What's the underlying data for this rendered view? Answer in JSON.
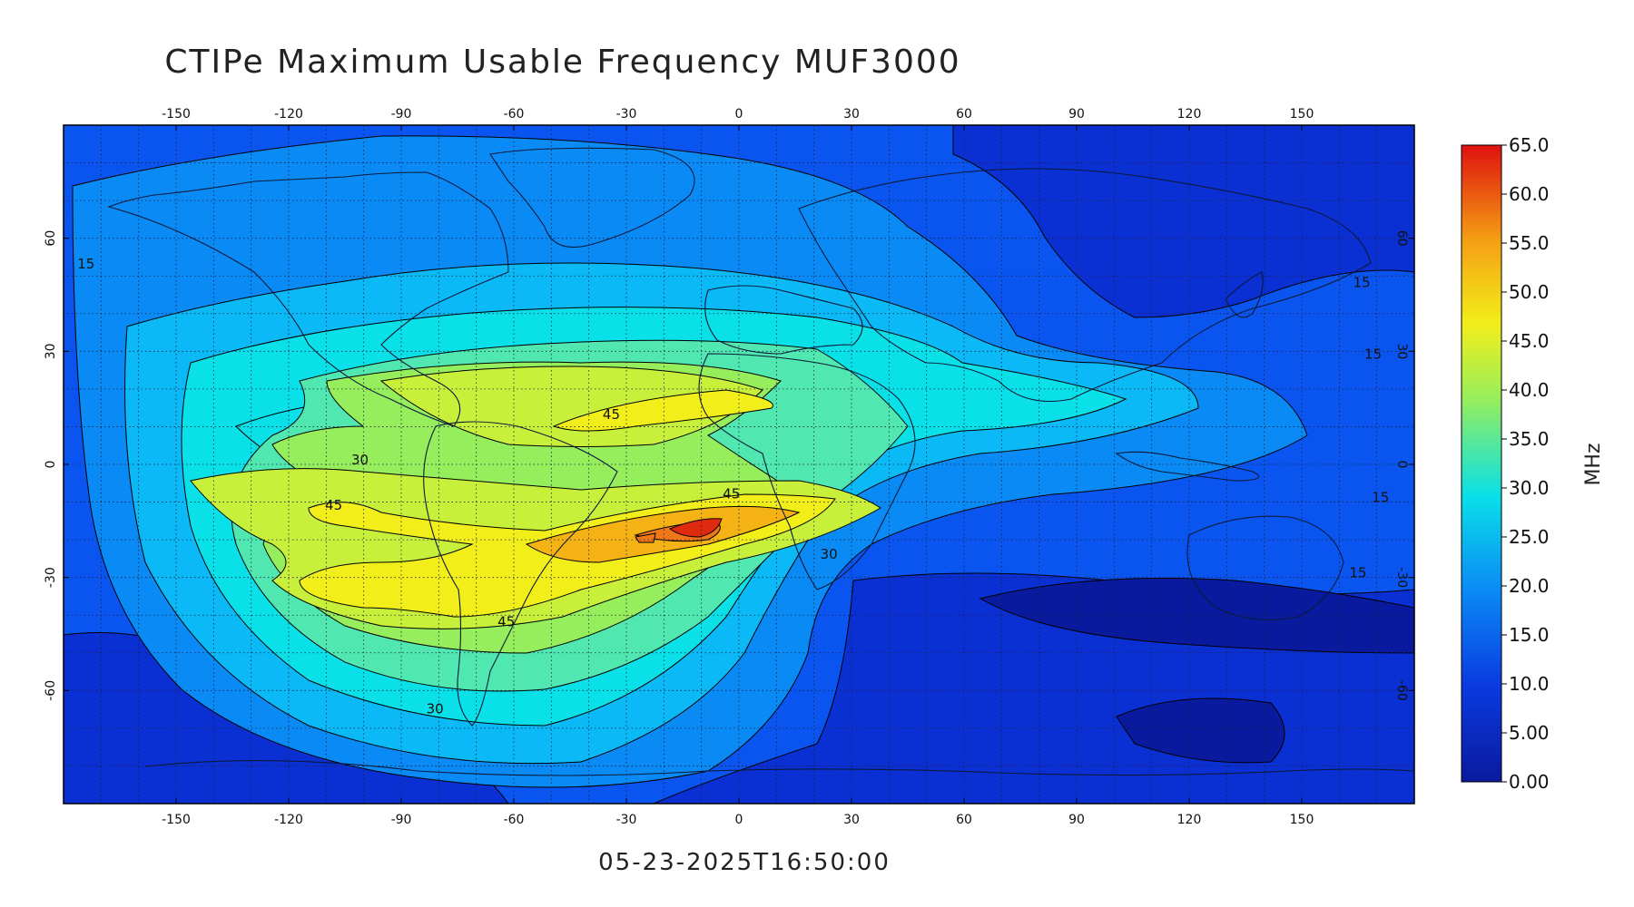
{
  "title": "CTIPe Maximum Usable Frequency MUF3000",
  "timestamp": "05-23-2025T16:50:00",
  "map": {
    "lon_range": [
      -180,
      180
    ],
    "lat_range": [
      -90,
      90
    ],
    "lon_ticks": [
      -150,
      -120,
      -90,
      -60,
      -30,
      0,
      30,
      60,
      90,
      120,
      150
    ],
    "lat_ticks": [
      -60,
      -30,
      0,
      30,
      60
    ],
    "grid": "dotted, every 10 degrees",
    "contour_labels": [
      {
        "text": "45",
        "lon": -34,
        "lat": 12
      },
      {
        "text": "45",
        "lon": -2,
        "lat": -9
      },
      {
        "text": "45",
        "lon": -108,
        "lat": -12
      },
      {
        "text": "45",
        "lon": -62,
        "lat": -43
      },
      {
        "text": "30",
        "lon": -101,
        "lat": 0
      },
      {
        "text": "30",
        "lon": 24,
        "lat": -25
      },
      {
        "text": "30",
        "lon": -81,
        "lat": -66
      },
      {
        "text": "15",
        "lon": -174,
        "lat": 52
      },
      {
        "text": "15",
        "lon": 166,
        "lat": 47
      },
      {
        "text": "15",
        "lon": 169,
        "lat": 28
      },
      {
        "text": "15",
        "lon": 171,
        "lat": -10
      },
      {
        "text": "15",
        "lon": 165,
        "lat": -30
      }
    ]
  },
  "colorbar": {
    "unit": "MHz",
    "min": 0,
    "max": 65,
    "labels": [
      "65.0",
      "60.0",
      "55.0",
      "50.0",
      "45.0",
      "40.0",
      "35.0",
      "30.0",
      "25.0",
      "20.0",
      "15.0",
      "10.0",
      "5.00",
      "0.00"
    ],
    "levels": [
      {
        "from": 0,
        "to": 5,
        "color": "#0a1a9e"
      },
      {
        "from": 5,
        "to": 10,
        "color": "#0a2fd2"
      },
      {
        "from": 10,
        "to": 15,
        "color": "#0a55f0"
      },
      {
        "from": 15,
        "to": 20,
        "color": "#0a8af5"
      },
      {
        "from": 20,
        "to": 25,
        "color": "#0ab9f5"
      },
      {
        "from": 25,
        "to": 30,
        "color": "#0ae0e8"
      },
      {
        "from": 30,
        "to": 35,
        "color": "#50e8b0"
      },
      {
        "from": 35,
        "to": 40,
        "color": "#96ee5c"
      },
      {
        "from": 40,
        "to": 45,
        "color": "#c8f03a"
      },
      {
        "from": 45,
        "to": 50,
        "color": "#f2ee1a"
      },
      {
        "from": 50,
        "to": 55,
        "color": "#f5b214"
      },
      {
        "from": 55,
        "to": 60,
        "color": "#f0761a"
      },
      {
        "from": 60,
        "to": 65,
        "color": "#e02a10"
      }
    ]
  },
  "colors": {
    "background_field": "#0a55f0",
    "grid": "#1c2240",
    "frame": "#000000",
    "coast": "#0b1a3a"
  }
}
